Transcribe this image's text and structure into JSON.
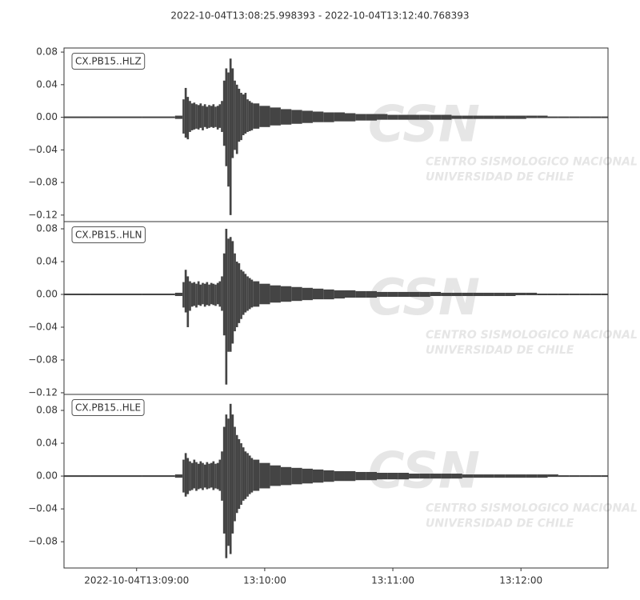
{
  "chart_data": {
    "type": "waveform",
    "title": "2022-10-04T13:08:25.998393  -  2022-10-04T13:12:40.768393",
    "watermark": {
      "logo": "CSN",
      "line1": "CENTRO SISMOLOGICO NACIONAL",
      "line2": "UNIVERSIDAD DE CHILE"
    },
    "xlim": [
      "2022-10-04T13:08:25.998393",
      "2022-10-04T13:12:40.768393"
    ],
    "xticks": [
      "2022-10-04T13:09:00",
      {
        "value": "2022-10-04T13:10:00",
        "label": "13:10:00"
      },
      {
        "value": "2022-10-04T13:11:00",
        "label": "13:11:00"
      },
      {
        "value": "2022-10-04T13:12:00",
        "label": "13:12:00"
      }
    ],
    "x": [
      "13:08:26",
      "13:08:50",
      "13:09:15",
      "13:09:21",
      "13:09:22",
      "13:09:23",
      "13:09:24",
      "13:09:25",
      "13:09:26",
      "13:09:27",
      "13:09:28",
      "13:09:29",
      "13:09:30",
      "13:09:31",
      "13:09:32",
      "13:09:33",
      "13:09:34",
      "13:09:35",
      "13:09:36",
      "13:09:37",
      "13:09:38",
      "13:09:39",
      "13:09:40",
      "13:09:41",
      "13:09:42",
      "13:09:43",
      "13:09:44",
      "13:09:45",
      "13:09:46",
      "13:09:47",
      "13:09:48",
      "13:09:49",
      "13:09:50",
      "13:09:51",
      "13:09:52",
      "13:09:53",
      "13:09:54",
      "13:09:55",
      "13:10:00",
      "13:10:05",
      "13:10:10",
      "13:10:15",
      "13:10:20",
      "13:10:25",
      "13:10:30",
      "13:10:35",
      "13:10:40",
      "13:10:45",
      "13:10:50",
      "13:10:55",
      "13:11:00",
      "13:11:05",
      "13:11:10",
      "13:11:15",
      "13:11:20",
      "13:11:25",
      "13:11:30",
      "13:11:35",
      "13:11:40",
      "13:11:45",
      "13:11:50",
      "13:11:55",
      "13:12:00",
      "13:12:05",
      "13:12:10",
      "13:12:15",
      "13:12:20",
      "13:12:25",
      "13:12:30",
      "13:12:35",
      "13:12:40"
    ],
    "series": [
      {
        "name": "CX.PB15..HLZ",
        "color": "#444444",
        "ylim": [
          -0.128,
          0.085
        ],
        "yticks": [
          0.08,
          0.04,
          {
            "value": 0,
            "label": "0.00"
          },
          {
            "value": -0.04,
            "label": "−0.04"
          },
          {
            "value": -0.08,
            "label": "−0.08"
          },
          {
            "value": -0.12,
            "label": "−0.12"
          }
        ],
        "max": [
          0.001,
          0.001,
          0.001,
          0.002,
          0.022,
          0.036,
          0.025,
          0.02,
          0.017,
          0.018,
          0.016,
          0.015,
          0.017,
          0.014,
          0.016,
          0.013,
          0.015,
          0.014,
          0.016,
          0.013,
          0.014,
          0.016,
          0.02,
          0.045,
          0.06,
          0.055,
          0.072,
          0.06,
          0.045,
          0.04,
          0.035,
          0.03,
          0.028,
          0.03,
          0.022,
          0.02,
          0.018,
          0.017,
          0.014,
          0.012,
          0.01,
          0.009,
          0.008,
          0.007,
          0.006,
          0.006,
          0.005,
          0.004,
          0.004,
          0.004,
          0.003,
          0.003,
          0.003,
          0.003,
          0.003,
          0.003,
          0.002,
          0.002,
          0.002,
          0.002,
          0.002,
          0.002,
          0.002,
          0.002,
          0.002,
          0.001,
          0.001,
          0.001,
          0.001,
          0.001,
          0.001
        ],
        "min": [
          -0.001,
          -0.001,
          -0.001,
          -0.002,
          -0.02,
          -0.025,
          -0.027,
          -0.018,
          -0.016,
          -0.015,
          -0.014,
          -0.015,
          -0.013,
          -0.016,
          -0.012,
          -0.014,
          -0.013,
          -0.012,
          -0.013,
          -0.012,
          -0.015,
          -0.013,
          -0.018,
          -0.035,
          -0.06,
          -0.085,
          -0.12,
          -0.05,
          -0.04,
          -0.045,
          -0.03,
          -0.028,
          -0.022,
          -0.02,
          -0.018,
          -0.017,
          -0.016,
          -0.014,
          -0.012,
          -0.01,
          -0.009,
          -0.008,
          -0.007,
          -0.006,
          -0.006,
          -0.005,
          -0.005,
          -0.004,
          -0.004,
          -0.003,
          -0.003,
          -0.003,
          -0.003,
          -0.003,
          -0.003,
          -0.003,
          -0.002,
          -0.002,
          -0.002,
          -0.002,
          -0.002,
          -0.002,
          -0.002,
          -0.001,
          -0.001,
          -0.001,
          -0.001,
          -0.001,
          -0.001,
          -0.001,
          -0.001
        ]
      },
      {
        "name": "CX.PB15..HLN",
        "color": "#444444",
        "ylim": [
          -0.122,
          0.0888
        ],
        "yticks": [
          0.08,
          0.04,
          {
            "value": 0,
            "label": "0.00"
          },
          {
            "value": -0.04,
            "label": "−0.04"
          },
          {
            "value": -0.08,
            "label": "−0.08"
          },
          {
            "value": -0.12,
            "label": "−0.12"
          }
        ],
        "max": [
          0.001,
          0.001,
          0.001,
          0.002,
          0.015,
          0.03,
          0.022,
          0.016,
          0.014,
          0.015,
          0.013,
          0.016,
          0.012,
          0.014,
          0.013,
          0.015,
          0.012,
          0.014,
          0.013,
          0.012,
          0.014,
          0.016,
          0.022,
          0.05,
          0.08,
          0.068,
          0.07,
          0.065,
          0.05,
          0.04,
          0.038,
          0.03,
          0.028,
          0.025,
          0.022,
          0.02,
          0.018,
          0.016,
          0.013,
          0.011,
          0.01,
          0.009,
          0.008,
          0.007,
          0.006,
          0.005,
          0.005,
          0.004,
          0.004,
          0.003,
          0.003,
          0.003,
          0.003,
          0.003,
          0.003,
          0.002,
          0.002,
          0.002,
          0.002,
          0.002,
          0.002,
          0.002,
          0.002,
          0.002,
          0.001,
          0.001,
          0.001,
          0.001,
          0.001,
          0.001,
          0.001
        ],
        "min": [
          -0.001,
          -0.001,
          -0.001,
          -0.002,
          -0.016,
          -0.022,
          -0.04,
          -0.02,
          -0.015,
          -0.014,
          -0.016,
          -0.013,
          -0.014,
          -0.012,
          -0.015,
          -0.013,
          -0.014,
          -0.012,
          -0.013,
          -0.014,
          -0.012,
          -0.015,
          -0.02,
          -0.05,
          -0.11,
          -0.07,
          -0.07,
          -0.06,
          -0.045,
          -0.04,
          -0.035,
          -0.03,
          -0.025,
          -0.022,
          -0.02,
          -0.018,
          -0.016,
          -0.015,
          -0.012,
          -0.01,
          -0.009,
          -0.008,
          -0.007,
          -0.006,
          -0.006,
          -0.005,
          -0.004,
          -0.004,
          -0.004,
          -0.003,
          -0.003,
          -0.003,
          -0.003,
          -0.003,
          -0.002,
          -0.002,
          -0.002,
          -0.002,
          -0.002,
          -0.002,
          -0.002,
          -0.002,
          -0.001,
          -0.001,
          -0.001,
          -0.001,
          -0.001,
          -0.001,
          -0.001,
          -0.001,
          -0.001
        ]
      },
      {
        "name": "CX.PB15..HLE",
        "color": "#444444",
        "ylim": [
          -0.112,
          0.0995
        ],
        "yticks": [
          0.08,
          0.04,
          {
            "value": 0,
            "label": "0.00"
          },
          {
            "value": -0.04,
            "label": "−0.04"
          },
          {
            "value": -0.08,
            "label": "−0.08"
          }
        ],
        "max": [
          0.001,
          0.001,
          0.001,
          0.002,
          0.02,
          0.028,
          0.022,
          0.018,
          0.016,
          0.02,
          0.017,
          0.015,
          0.018,
          0.016,
          0.014,
          0.017,
          0.015,
          0.016,
          0.018,
          0.015,
          0.016,
          0.02,
          0.03,
          0.06,
          0.075,
          0.07,
          0.088,
          0.075,
          0.06,
          0.05,
          0.045,
          0.04,
          0.035,
          0.03,
          0.028,
          0.025,
          0.022,
          0.02,
          0.016,
          0.013,
          0.011,
          0.01,
          0.009,
          0.008,
          0.007,
          0.006,
          0.006,
          0.005,
          0.005,
          0.004,
          0.004,
          0.004,
          0.003,
          0.003,
          0.003,
          0.003,
          0.003,
          0.002,
          0.002,
          0.002,
          0.002,
          0.002,
          0.002,
          0.002,
          0.002,
          0.002,
          0.001,
          0.001,
          0.001,
          0.001,
          0.001
        ],
        "min": [
          -0.001,
          -0.001,
          -0.001,
          -0.002,
          -0.02,
          -0.025,
          -0.022,
          -0.018,
          -0.017,
          -0.015,
          -0.018,
          -0.016,
          -0.015,
          -0.017,
          -0.014,
          -0.016,
          -0.015,
          -0.014,
          -0.017,
          -0.015,
          -0.016,
          -0.018,
          -0.03,
          -0.07,
          -0.1,
          -0.085,
          -0.095,
          -0.07,
          -0.055,
          -0.045,
          -0.04,
          -0.035,
          -0.03,
          -0.028,
          -0.025,
          -0.022,
          -0.02,
          -0.018,
          -0.015,
          -0.012,
          -0.011,
          -0.01,
          -0.009,
          -0.008,
          -0.007,
          -0.006,
          -0.006,
          -0.005,
          -0.005,
          -0.004,
          -0.004,
          -0.004,
          -0.003,
          -0.003,
          -0.003,
          -0.003,
          -0.003,
          -0.002,
          -0.002,
          -0.002,
          -0.002,
          -0.002,
          -0.002,
          -0.002,
          -0.002,
          -0.001,
          -0.001,
          -0.001,
          -0.001,
          -0.001,
          -0.001
        ]
      }
    ]
  }
}
